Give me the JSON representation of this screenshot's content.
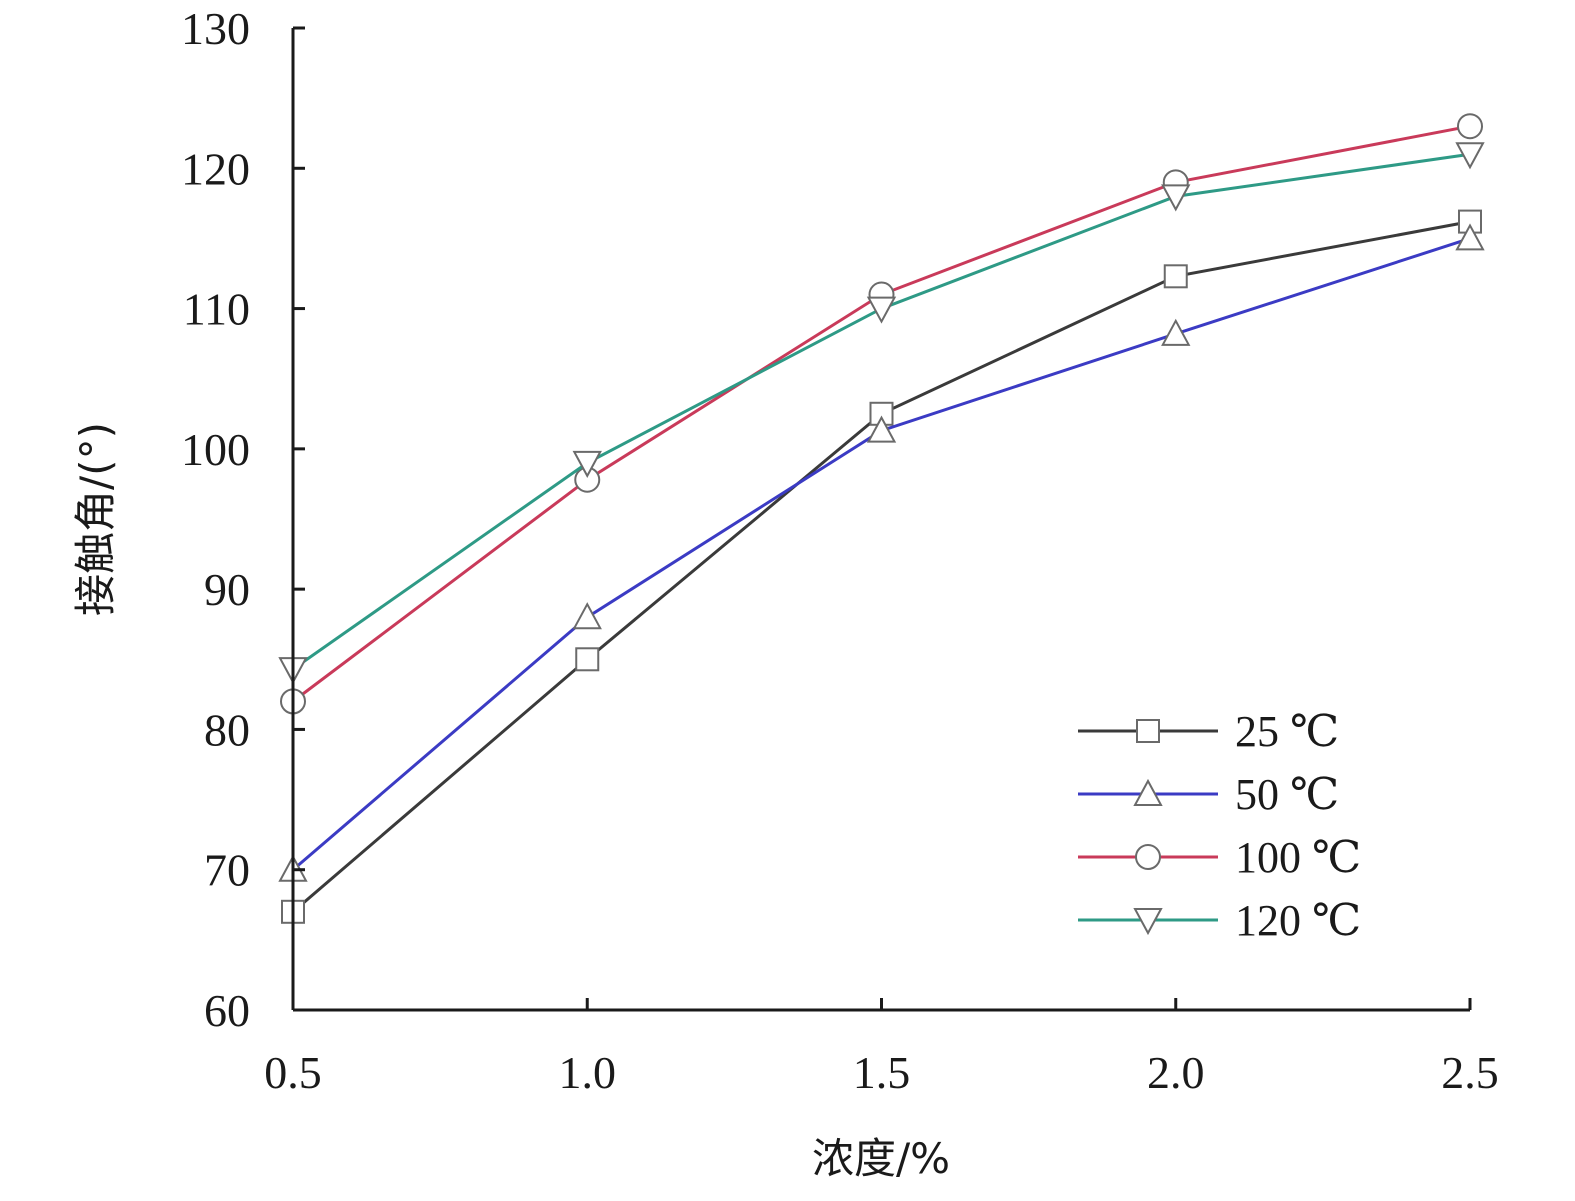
{
  "chart_data": {
    "type": "line",
    "title": "",
    "xlabel": "浓度/%",
    "ylabel": "接触角/(°)",
    "x": [
      0.5,
      1.0,
      1.5,
      2.0,
      2.5
    ],
    "x_tick_labels": [
      "0.5",
      "1.0",
      "1.5",
      "2.0",
      "2.5"
    ],
    "y_tick_labels": [
      "60",
      "70",
      "80",
      "90",
      "100",
      "110",
      "120",
      "130"
    ],
    "xlim": [
      0.5,
      2.5
    ],
    "ylim": [
      60,
      130
    ],
    "grid": false,
    "legend_position": "bottom-right",
    "series": [
      {
        "name": "25 ℃",
        "values": [
          67,
          85,
          102.5,
          112.3,
          116.2
        ],
        "color": "#3a3a3a",
        "marker": "square"
      },
      {
        "name": "50 ℃",
        "values": [
          70,
          88,
          101.3,
          108.2,
          115
        ],
        "color": "#3b3bc4",
        "marker": "triangle-up"
      },
      {
        "name": "100 ℃",
        "values": [
          82,
          97.8,
          111,
          119,
          123
        ],
        "color": "#c93a5a",
        "marker": "circle"
      },
      {
        "name": "120 ℃",
        "values": [
          84.3,
          99,
          110,
          118,
          121
        ],
        "color": "#2e9a86",
        "marker": "triangle-down"
      }
    ]
  }
}
